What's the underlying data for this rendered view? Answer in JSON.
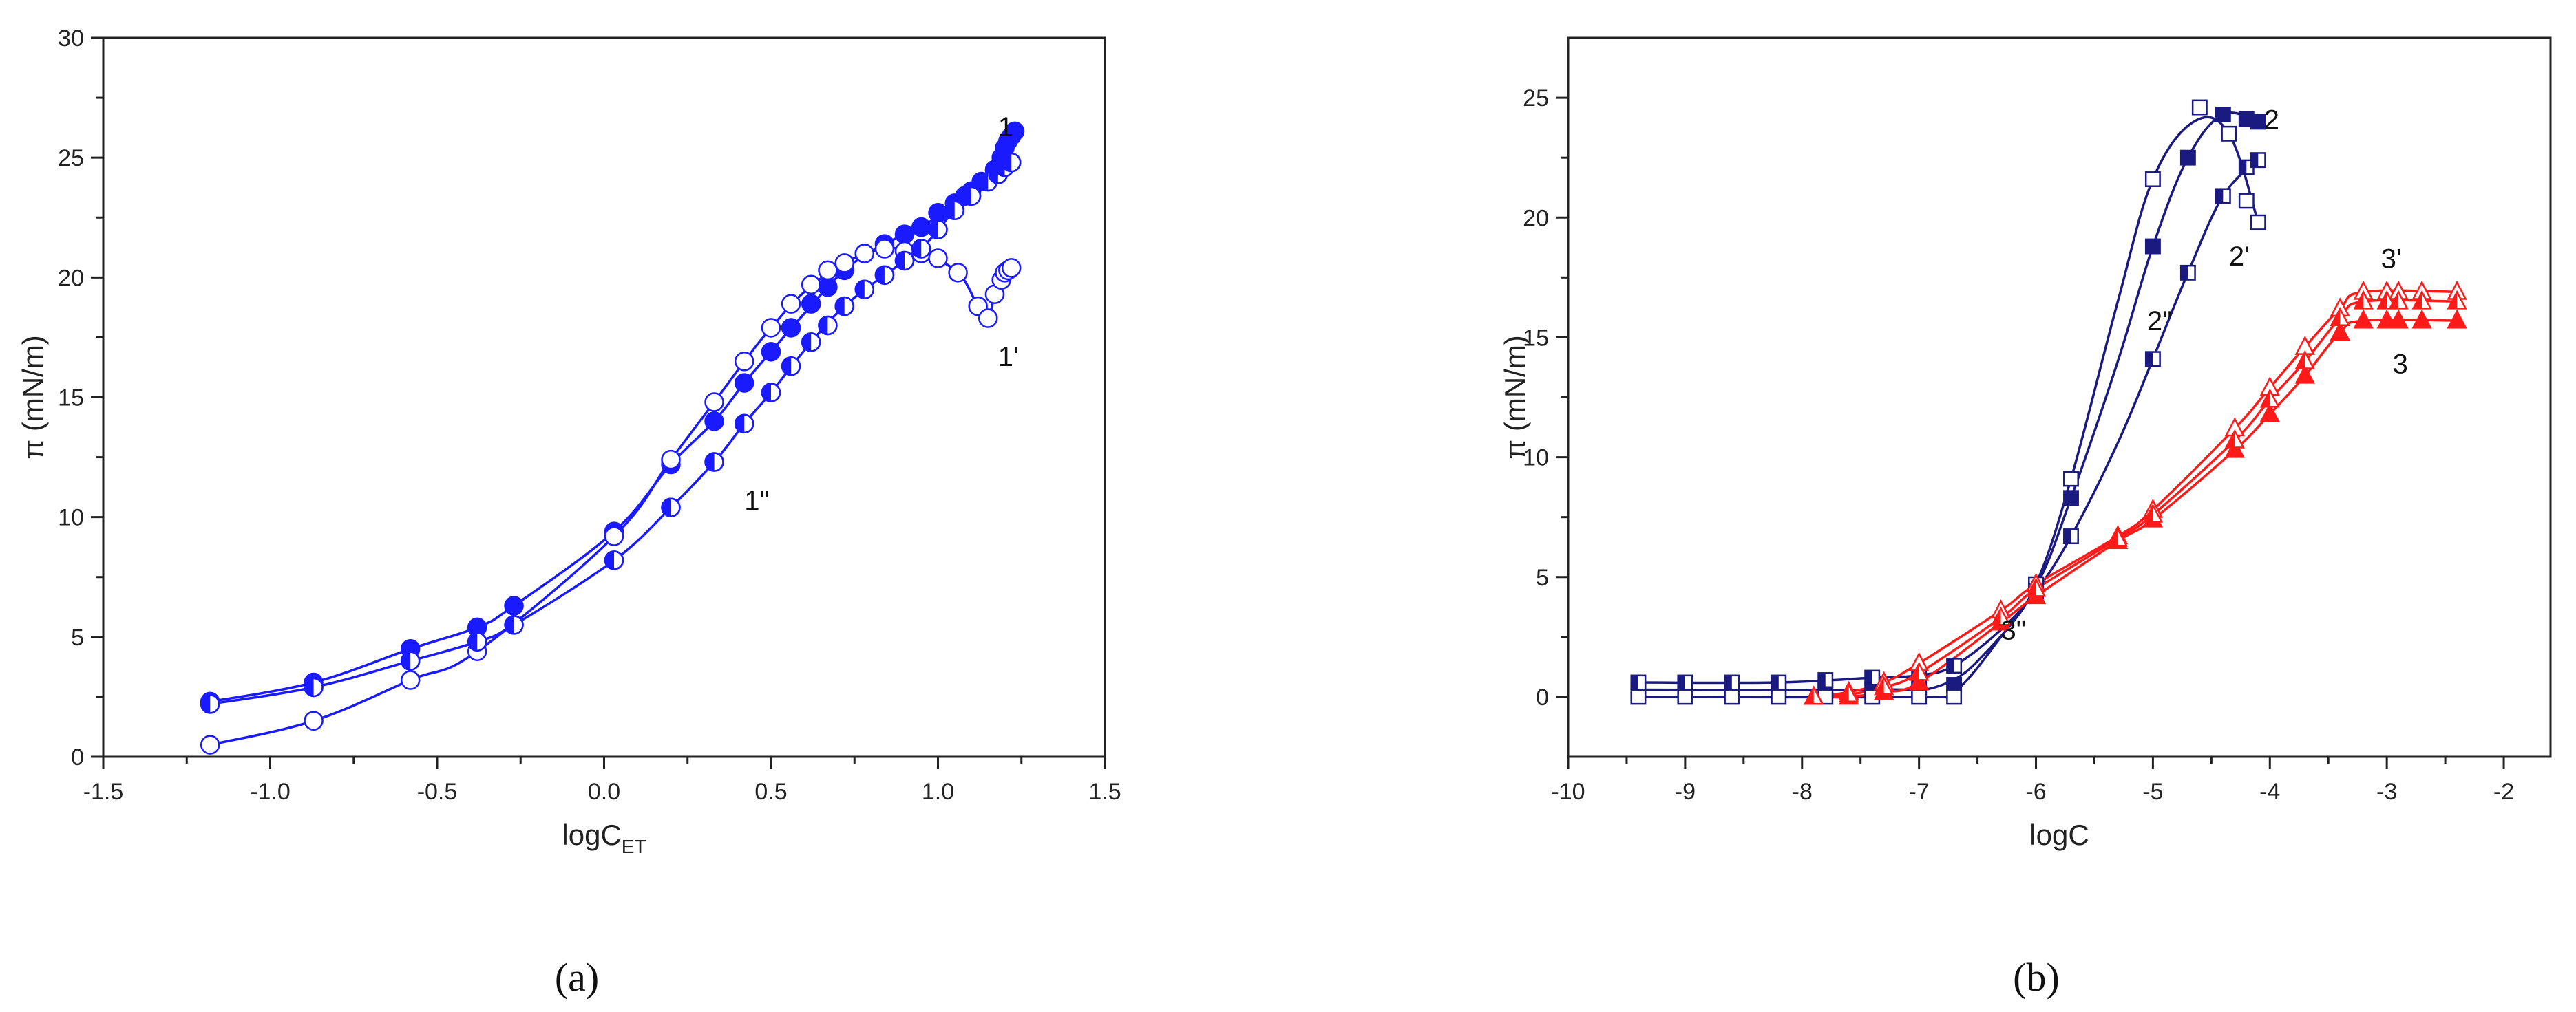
{
  "chart_data": [
    {
      "panel": "(a)",
      "type": "line",
      "xlim": [
        -1.5,
        1.5
      ],
      "ylim": [
        0,
        30
      ],
      "xticks": [
        "-1.5",
        "-1.0",
        "-0.5",
        "0.0",
        "0.5",
        "1.0",
        "1.5"
      ],
      "xtick_values": [
        -1.5,
        -1.0,
        -0.5,
        0.0,
        0.5,
        1.0,
        1.5
      ],
      "yticks": [
        "0",
        "5",
        "10",
        "15",
        "20",
        "25",
        "30"
      ],
      "ytick_values": [
        0,
        5,
        10,
        15,
        20,
        25,
        30
      ],
      "ylabel": "π (mN/m)",
      "xlabel_main": "logC",
      "xlabel_sub": "ET",
      "color": "#1a1aff",
      "series": [
        {
          "label": "1",
          "marker": "filled-circle",
          "x": [
            -1.18,
            -0.87,
            -0.58,
            -0.38,
            -0.27,
            0.03,
            0.2,
            0.33,
            0.42,
            0.5,
            0.56,
            0.62,
            0.67,
            0.72,
            0.78,
            0.84,
            0.9,
            0.95,
            1.0,
            1.05,
            1.08,
            1.1,
            1.13,
            1.17,
            1.19,
            1.2,
            1.21,
            1.22,
            1.23
          ],
          "y": [
            2.3,
            3.1,
            4.5,
            5.4,
            6.3,
            9.4,
            12.2,
            14.0,
            15.6,
            16.9,
            17.9,
            18.9,
            19.6,
            20.3,
            21.0,
            21.4,
            21.8,
            22.1,
            22.7,
            23.1,
            23.4,
            23.6,
            24.0,
            24.5,
            25.0,
            25.4,
            25.7,
            25.9,
            26.1
          ],
          "curve": [
            [
              -1.18,
              2.3
            ],
            [
              -0.87,
              3.1
            ],
            [
              -0.58,
              4.5
            ],
            [
              -0.38,
              5.4
            ],
            [
              -0.27,
              6.3
            ],
            [
              0.03,
              9.4
            ],
            [
              0.2,
              12.2
            ],
            [
              0.33,
              14.0
            ],
            [
              0.42,
              15.6
            ],
            [
              0.5,
              16.9
            ],
            [
              0.6,
              18.5
            ],
            [
              0.72,
              20.3
            ],
            [
              0.84,
              21.4
            ],
            [
              0.95,
              22.1
            ],
            [
              1.05,
              23.1
            ],
            [
              1.13,
              24.0
            ],
            [
              1.2,
              25.4
            ],
            [
              1.23,
              26.1
            ]
          ]
        },
        {
          "label": "1'",
          "marker": "open-circle",
          "x": [
            -1.18,
            -0.87,
            -0.58,
            -0.38,
            0.03,
            0.2,
            0.33,
            0.42,
            0.5,
            0.56,
            0.62,
            0.67,
            0.72,
            0.78,
            0.84,
            0.9,
            0.95,
            1.0,
            1.06,
            1.12,
            1.15,
            1.17,
            1.19,
            1.2,
            1.21,
            1.22
          ],
          "y": [
            0.5,
            1.5,
            3.2,
            4.4,
            9.2,
            12.4,
            14.8,
            16.5,
            17.9,
            18.9,
            19.7,
            20.3,
            20.6,
            21.0,
            21.2,
            21.1,
            21.0,
            20.8,
            20.2,
            18.8,
            18.3,
            19.3,
            19.9,
            20.2,
            20.3,
            20.4
          ],
          "curve": [
            [
              -1.18,
              0.5
            ],
            [
              -0.87,
              1.5
            ],
            [
              -0.58,
              3.2
            ],
            [
              -0.38,
              4.4
            ],
            [
              0.03,
              9.2
            ],
            [
              0.2,
              12.4
            ],
            [
              0.33,
              14.8
            ],
            [
              0.42,
              16.5
            ],
            [
              0.5,
              17.9
            ],
            [
              0.6,
              19.4
            ],
            [
              0.72,
              20.6
            ],
            [
              0.84,
              21.2
            ],
            [
              0.95,
              21.0
            ],
            [
              1.06,
              20.2
            ],
            [
              1.12,
              18.8
            ],
            [
              1.15,
              18.3
            ],
            [
              1.17,
              19.3
            ],
            [
              1.19,
              19.9
            ],
            [
              1.22,
              20.4
            ]
          ]
        },
        {
          "label": "1\"",
          "marker": "half-circle",
          "x": [
            -1.18,
            -0.87,
            -0.58,
            -0.38,
            -0.27,
            0.03,
            0.2,
            0.33,
            0.42,
            0.5,
            0.56,
            0.62,
            0.67,
            0.72,
            0.78,
            0.84,
            0.9,
            0.95,
            1.0,
            1.05,
            1.1,
            1.15,
            1.18,
            1.2,
            1.22
          ],
          "y": [
            2.2,
            2.9,
            4.0,
            4.8,
            5.5,
            8.2,
            10.4,
            12.3,
            13.9,
            15.2,
            16.3,
            17.3,
            18.0,
            18.8,
            19.5,
            20.1,
            20.7,
            21.2,
            22.0,
            22.8,
            23.4,
            24.0,
            24.3,
            24.6,
            24.8
          ],
          "curve": [
            [
              -1.18,
              2.2
            ],
            [
              -0.87,
              2.9
            ],
            [
              -0.58,
              4.0
            ],
            [
              -0.38,
              4.8
            ],
            [
              -0.27,
              5.5
            ],
            [
              0.03,
              8.2
            ],
            [
              0.2,
              10.4
            ],
            [
              0.33,
              12.3
            ],
            [
              0.42,
              13.9
            ],
            [
              0.5,
              15.2
            ],
            [
              0.62,
              17.3
            ],
            [
              0.72,
              18.8
            ],
            [
              0.84,
              20.1
            ],
            [
              0.95,
              21.2
            ],
            [
              1.05,
              22.8
            ],
            [
              1.15,
              24.0
            ],
            [
              1.22,
              24.8
            ]
          ]
        }
      ],
      "curve_labels": [
        {
          "text": "1",
          "x": 1.18,
          "y": 25.9
        },
        {
          "text": "1'",
          "x": 1.18,
          "y": 16.3
        },
        {
          "text": "1\"",
          "x": 0.42,
          "y": 10.3
        }
      ]
    },
    {
      "panel": "(b)",
      "type": "line",
      "xlim": [
        -10,
        -1.6
      ],
      "ylim": [
        -2.5,
        27.5
      ],
      "xticks": [
        "-10",
        "-9",
        "-8",
        "-7",
        "-6",
        "-5",
        "-4",
        "-3",
        "-2"
      ],
      "xtick_values": [
        -10,
        -9,
        -8,
        -7,
        -6,
        -5,
        -4,
        -3,
        -2
      ],
      "yticks": [
        "0",
        "5",
        "10",
        "15",
        "20",
        "25"
      ],
      "ytick_values": [
        0,
        5,
        10,
        15,
        20,
        25
      ],
      "ylabel": "π (mN/m)",
      "xlabel_main": "logC",
      "xlabel_sub": "",
      "series": [
        {
          "label": "2",
          "marker": "filled-square",
          "color": "#1a1a80",
          "x": [
            -9.4,
            -9.0,
            -8.6,
            -8.2,
            -7.8,
            -7.4,
            -7.0,
            -6.7,
            -6.0,
            -5.7,
            -5.0,
            -4.7,
            -4.4,
            -4.2,
            -4.1
          ],
          "y": [
            0.3,
            0.3,
            0.3,
            0.3,
            0.3,
            0.3,
            0.3,
            0.5,
            4.6,
            8.3,
            18.8,
            22.5,
            24.3,
            24.1,
            24.0
          ],
          "curve": [
            [
              -9.4,
              0.3
            ],
            [
              -7.4,
              0.3
            ],
            [
              -6.8,
              0.5
            ],
            [
              -6.4,
              2.0
            ],
            [
              -6.0,
              4.6
            ],
            [
              -5.7,
              8.3
            ],
            [
              -5.3,
              14.0
            ],
            [
              -5.0,
              18.8
            ],
            [
              -4.7,
              22.5
            ],
            [
              -4.4,
              24.3
            ],
            [
              -4.1,
              24.0
            ]
          ]
        },
        {
          "label": "2'",
          "marker": "open-square",
          "color": "#1a1a80",
          "x": [
            -9.4,
            -9.0,
            -8.6,
            -8.2,
            -7.8,
            -7.4,
            -7.0,
            -6.7,
            -6.0,
            -5.7,
            -5.0,
            -4.6,
            -4.35,
            -4.2,
            -4.1
          ],
          "y": [
            0.0,
            0.0,
            0.0,
            0.0,
            0.0,
            0.0,
            0.0,
            0.0,
            4.7,
            9.1,
            21.6,
            24.6,
            23.5,
            20.7,
            19.8
          ],
          "curve": [
            [
              -9.4,
              0.0
            ],
            [
              -7.0,
              0.0
            ],
            [
              -6.7,
              0.2
            ],
            [
              -6.3,
              2.5
            ],
            [
              -6.0,
              4.7
            ],
            [
              -5.7,
              9.1
            ],
            [
              -5.3,
              16.5
            ],
            [
              -5.0,
              21.6
            ],
            [
              -4.65,
              24.0
            ],
            [
              -4.35,
              23.5
            ],
            [
              -4.1,
              19.8
            ]
          ]
        },
        {
          "label": "2\"",
          "marker": "half-square",
          "color": "#1a1a80",
          "x": [
            -9.4,
            -9.0,
            -8.6,
            -8.2,
            -7.8,
            -7.4,
            -7.0,
            -6.7,
            -6.0,
            -5.7,
            -5.0,
            -4.7,
            -4.4,
            -4.2,
            -4.1
          ],
          "y": [
            0.6,
            0.6,
            0.6,
            0.6,
            0.7,
            0.8,
            0.9,
            1.3,
            4.4,
            6.7,
            14.1,
            17.7,
            20.9,
            22.1,
            22.4
          ],
          "curve": [
            [
              -9.4,
              0.6
            ],
            [
              -8.2,
              0.6
            ],
            [
              -7.4,
              0.8
            ],
            [
              -7.0,
              0.9
            ],
            [
              -6.7,
              1.3
            ],
            [
              -6.3,
              2.8
            ],
            [
              -6.0,
              4.4
            ],
            [
              -5.7,
              6.7
            ],
            [
              -5.3,
              10.6
            ],
            [
              -5.0,
              14.1
            ],
            [
              -4.7,
              17.7
            ],
            [
              -4.4,
              20.9
            ],
            [
              -4.1,
              22.4
            ]
          ]
        },
        {
          "label": "3",
          "marker": "filled-triangle",
          "color": "#ff1a1a",
          "x": [
            -7.9,
            -7.6,
            -7.3,
            -7.0,
            -6.3,
            -6.0,
            -5.3,
            -5.0,
            -4.3,
            -4.0,
            -3.7,
            -3.4,
            -3.2,
            -3.0,
            -2.9,
            -2.7,
            -2.4
          ],
          "y": [
            0.0,
            0.0,
            0.2,
            0.6,
            3.1,
            4.2,
            6.5,
            7.4,
            10.3,
            11.8,
            13.4,
            15.2,
            15.7,
            15.7,
            15.7,
            15.7,
            15.7
          ],
          "curve": [
            [
              -7.9,
              0.0
            ],
            [
              -7.6,
              0.0
            ],
            [
              -7.3,
              0.2
            ],
            [
              -7.0,
              0.6
            ],
            [
              -6.3,
              3.1
            ],
            [
              -6.0,
              4.2
            ],
            [
              -5.3,
              6.5
            ],
            [
              -5.0,
              7.4
            ],
            [
              -4.3,
              10.3
            ],
            [
              -4.0,
              11.8
            ],
            [
              -3.7,
              13.4
            ],
            [
              -3.4,
              15.2
            ],
            [
              -3.2,
              15.7
            ],
            [
              -2.4,
              15.7
            ]
          ]
        },
        {
          "label": "3'",
          "marker": "open-triangle",
          "color": "#ff1a1a",
          "x": [
            -7.9,
            -7.6,
            -7.3,
            -7.0,
            -6.3,
            -6.0,
            -5.3,
            -5.0,
            -4.3,
            -4.0,
            -3.7,
            -3.4,
            -3.2,
            -3.0,
            -2.9,
            -2.7,
            -2.4
          ],
          "y": [
            0.0,
            0.2,
            0.6,
            1.4,
            3.6,
            4.7,
            6.7,
            7.8,
            11.2,
            12.9,
            14.6,
            16.2,
            16.9,
            16.9,
            16.9,
            16.9,
            16.9
          ],
          "curve": [
            [
              -7.9,
              0.0
            ],
            [
              -7.6,
              0.2
            ],
            [
              -7.3,
              0.6
            ],
            [
              -7.0,
              1.4
            ],
            [
              -6.3,
              3.6
            ],
            [
              -6.0,
              4.7
            ],
            [
              -5.3,
              6.7
            ],
            [
              -5.0,
              7.8
            ],
            [
              -4.3,
              11.2
            ],
            [
              -4.0,
              12.9
            ],
            [
              -3.7,
              14.6
            ],
            [
              -3.4,
              16.2
            ],
            [
              -3.2,
              16.9
            ],
            [
              -2.4,
              16.9
            ]
          ]
        },
        {
          "label": "3\"",
          "marker": "half-triangle",
          "color": "#ff1a1a",
          "x": [
            -7.9,
            -7.6,
            -7.3,
            -7.0,
            -6.3,
            -6.0,
            -5.3,
            -5.0,
            -4.3,
            -4.0,
            -3.7,
            -3.4,
            -3.2,
            -3.0,
            -2.9,
            -2.7,
            -2.4
          ],
          "y": [
            0.0,
            0.1,
            0.4,
            1.0,
            3.3,
            4.5,
            6.6,
            7.6,
            10.7,
            12.4,
            14.0,
            15.8,
            16.5,
            16.5,
            16.5,
            16.5,
            16.5
          ],
          "curve": [
            [
              -7.9,
              0.0
            ],
            [
              -7.6,
              0.1
            ],
            [
              -7.3,
              0.4
            ],
            [
              -7.0,
              1.0
            ],
            [
              -6.3,
              3.3
            ],
            [
              -6.0,
              4.5
            ],
            [
              -5.3,
              6.6
            ],
            [
              -5.0,
              7.6
            ],
            [
              -4.3,
              10.7
            ],
            [
              -4.0,
              12.4
            ],
            [
              -3.7,
              14.0
            ],
            [
              -3.4,
              15.8
            ],
            [
              -3.2,
              16.5
            ],
            [
              -2.4,
              16.5
            ]
          ]
        }
      ],
      "curve_labels": [
        {
          "text": "2",
          "x": -4.05,
          "y": 23.7
        },
        {
          "text": "2'",
          "x": -4.35,
          "y": 18.0
        },
        {
          "text": "2\"",
          "x": -5.05,
          "y": 15.3
        },
        {
          "text": "3'",
          "x": -3.05,
          "y": 17.9
        },
        {
          "text": "3",
          "x": -2.95,
          "y": 13.5
        },
        {
          "text": "3\"",
          "x": -6.3,
          "y": 2.4
        }
      ]
    }
  ]
}
